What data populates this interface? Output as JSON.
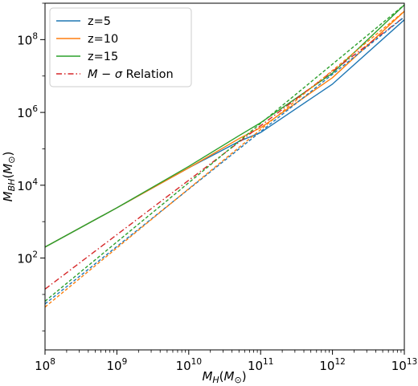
{
  "chart_data": {
    "type": "line",
    "title": "",
    "xlabel": "M_H(M_⊙)",
    "ylabel": "M_BH(M_⊙)",
    "xscale": "log",
    "yscale": "log",
    "xlim": [
      100000000.0,
      10000000000000.0
    ],
    "ylim": [
      0.3,
      1000000000.0
    ],
    "grid": false,
    "legend_position": "top-left",
    "x_ticks": [
      {
        "value": 100000000.0,
        "base": "10",
        "exp": "8"
      },
      {
        "value": 1000000000.0,
        "base": "10",
        "exp": "9"
      },
      {
        "value": 10000000000.0,
        "base": "10",
        "exp": "10"
      },
      {
        "value": 100000000000.0,
        "base": "10",
        "exp": "11"
      },
      {
        "value": 1000000000000.0,
        "base": "10",
        "exp": "12"
      },
      {
        "value": 10000000000000.0,
        "base": "10",
        "exp": "13"
      }
    ],
    "y_ticks": [
      {
        "value": 100.0,
        "base": "10",
        "exp": "2"
      },
      {
        "value": 10000.0,
        "base": "10",
        "exp": "4"
      },
      {
        "value": 1000000.0,
        "base": "10",
        "exp": "6"
      },
      {
        "value": 100000000.0,
        "base": "10",
        "exp": "8"
      }
    ],
    "series": [
      {
        "name": "z=5",
        "color": "#1f77b4",
        "dash": "solid",
        "x": [
          100000000.0,
          1000000000.0,
          10000000000.0,
          50000000000.0,
          100000000000.0,
          1000000000000.0,
          10000000000000.0
        ],
        "y": [
          200,
          2400,
          30000,
          160000,
          280000,
          6000000,
          350000000
        ]
      },
      {
        "name": "z=10",
        "color": "#ff7f0e",
        "dash": "solid",
        "x": [
          100000000.0,
          1000000000.0,
          10000000000.0,
          50000000000.0,
          100000000000.0,
          1000000000000.0,
          10000000000000.0
        ],
        "y": [
          200,
          2400,
          30000,
          190000,
          380000,
          9000000,
          600000000
        ]
      },
      {
        "name": "z=15",
        "color": "#2ca02c",
        "dash": "solid",
        "x": [
          100000000.0,
          1000000000.0,
          10000000000.0,
          50000000000.0,
          100000000000.0,
          1000000000000.0,
          10000000000000.0
        ],
        "y": [
          200,
          2400,
          33000,
          230000,
          520000,
          12000000,
          900000000
        ]
      },
      {
        "name": "M − σ Relation",
        "color": "#d62728",
        "dash": "dashdot",
        "x": [
          100000000.0,
          10000000000000.0
        ],
        "y": [
          14,
          420000000
        ]
      },
      {
        "name": "",
        "color": "#1f77b4",
        "dash": "dashed",
        "x": [
          100000000.0,
          10000000000000.0
        ],
        "y": [
          5.5,
          420000000
        ]
      },
      {
        "name": "",
        "color": "#ff7f0e",
        "dash": "dashed",
        "x": [
          100000000.0,
          10000000000000.0
        ],
        "y": [
          4.5,
          600000000
        ]
      },
      {
        "name": "",
        "color": "#2ca02c",
        "dash": "dashed",
        "x": [
          100000000.0,
          10000000000000.0
        ],
        "y": [
          6.5,
          900000000
        ]
      }
    ]
  },
  "legend": {
    "entries": [
      {
        "label": "z=5",
        "color": "#1f77b4",
        "dash": "solid"
      },
      {
        "label": "z=10",
        "color": "#ff7f0e",
        "dash": "solid"
      },
      {
        "label": "z=15",
        "color": "#2ca02c",
        "dash": "solid"
      },
      {
        "label_main": "M − σ",
        "label_tail": " Relation",
        "color": "#d62728",
        "dash": "dashdot"
      }
    ]
  },
  "axis_labels": {
    "x_main": "M",
    "x_sub": "H",
    "x_paren_open": "(",
    "x_unit_main": "M",
    "x_unit_sub": "⊙",
    "x_paren_close": ")",
    "y_main": "M",
    "y_sub": "BH",
    "y_paren_open": "(",
    "y_unit_main": "M",
    "y_unit_sub": "⊙",
    "y_paren_close": ")"
  }
}
